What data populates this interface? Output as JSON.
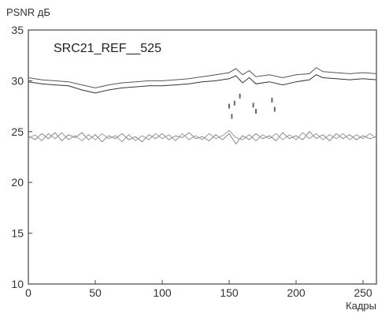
{
  "chart_data": {
    "type": "line",
    "ylabel": "PSNR  дБ",
    "xlabel": "Кадры",
    "annotation": "SRC21_REF__525",
    "xlim": [
      0,
      260
    ],
    "ylim": [
      10,
      35
    ],
    "xticks": [
      "0",
      "50",
      "100",
      "150",
      "200",
      "250"
    ],
    "yticks": [
      "10",
      "15",
      "20",
      "25",
      "30",
      "35"
    ],
    "grid": false,
    "series": [
      {
        "color": "#555555",
        "x": [
          0,
          10,
          20,
          30,
          40,
          50,
          60,
          70,
          80,
          90,
          100,
          110,
          120,
          130,
          140,
          150,
          155,
          160,
          165,
          170,
          180,
          190,
          200,
          210,
          215,
          220,
          230,
          240,
          250,
          260
        ],
        "values": [
          30.3,
          30.1,
          30.0,
          29.9,
          29.6,
          29.3,
          29.6,
          29.8,
          29.9,
          30.0,
          30.0,
          30.1,
          30.2,
          30.4,
          30.6,
          30.8,
          31.2,
          30.6,
          31.0,
          30.4,
          30.6,
          30.3,
          30.6,
          30.7,
          31.3,
          30.9,
          30.8,
          30.7,
          30.8,
          30.7
        ]
      },
      {
        "color": "#333333",
        "x": [
          0,
          10,
          20,
          30,
          40,
          50,
          60,
          70,
          80,
          90,
          100,
          110,
          120,
          130,
          140,
          150,
          155,
          160,
          165,
          170,
          180,
          190,
          200,
          210,
          215,
          220,
          230,
          240,
          250,
          260
        ],
        "values": [
          29.9,
          29.7,
          29.6,
          29.5,
          29.1,
          28.8,
          29.1,
          29.3,
          29.4,
          29.5,
          29.5,
          29.6,
          29.7,
          29.9,
          30.0,
          30.2,
          30.5,
          29.8,
          30.3,
          29.7,
          29.9,
          29.6,
          29.9,
          30.1,
          30.6,
          30.3,
          30.2,
          30.1,
          30.2,
          30.1
        ]
      },
      {
        "color": "#888888",
        "x": [
          0,
          5,
          10,
          15,
          20,
          25,
          30,
          35,
          40,
          45,
          50,
          55,
          60,
          65,
          70,
          75,
          80,
          85,
          90,
          95,
          100,
          105,
          110,
          115,
          120,
          125,
          130,
          135,
          140,
          145,
          150,
          155,
          160,
          165,
          170,
          175,
          180,
          185,
          190,
          195,
          200,
          205,
          210,
          215,
          220,
          225,
          230,
          235,
          240,
          245,
          250,
          255,
          260
        ],
        "values": [
          24.6,
          24.2,
          24.8,
          24.3,
          24.9,
          24.1,
          24.7,
          24.4,
          24.9,
          24.2,
          24.7,
          24.0,
          24.6,
          24.3,
          24.8,
          24.2,
          24.5,
          24.0,
          24.7,
          24.3,
          24.8,
          24.2,
          24.6,
          24.4,
          24.9,
          24.3,
          24.5,
          24.1,
          24.7,
          24.2,
          24.8,
          23.8,
          24.6,
          24.2,
          24.8,
          24.3,
          24.6,
          24.1,
          24.9,
          24.3,
          24.6,
          24.2,
          25.0,
          24.3,
          24.7,
          24.1,
          24.8,
          24.3,
          24.7,
          24.2,
          24.6,
          24.3,
          24.5
        ]
      },
      {
        "color": "#999999",
        "x": [
          0,
          5,
          10,
          15,
          20,
          25,
          30,
          35,
          40,
          45,
          50,
          55,
          60,
          65,
          70,
          75,
          80,
          85,
          90,
          95,
          100,
          105,
          110,
          115,
          120,
          125,
          130,
          135,
          140,
          145,
          150,
          155,
          160,
          165,
          170,
          175,
          180,
          185,
          190,
          195,
          200,
          205,
          210,
          215,
          220,
          225,
          230,
          235,
          240,
          245,
          250,
          255,
          260
        ],
        "values": [
          24.3,
          24.7,
          24.1,
          24.8,
          24.3,
          24.9,
          24.2,
          24.6,
          24.1,
          24.7,
          24.2,
          24.8,
          24.3,
          24.6,
          24.0,
          24.7,
          24.1,
          24.6,
          24.2,
          24.8,
          24.3,
          24.7,
          24.1,
          24.8,
          24.2,
          24.6,
          24.2,
          24.8,
          24.3,
          24.6,
          25.1,
          24.4,
          24.2,
          24.7,
          24.1,
          24.7,
          24.3,
          24.8,
          24.2,
          24.7,
          24.2,
          24.9,
          24.3,
          24.8,
          24.2,
          24.7,
          24.3,
          24.8,
          24.2,
          24.7,
          24.3,
          24.8,
          24.4
        ]
      }
    ],
    "dropouts": {
      "color": "#666666",
      "x": [
        150,
        152,
        154,
        158,
        168,
        170,
        182,
        184
      ],
      "values": [
        27.5,
        26.5,
        27.8,
        28.5,
        27.6,
        27.0,
        28.1,
        27.2
      ]
    }
  }
}
